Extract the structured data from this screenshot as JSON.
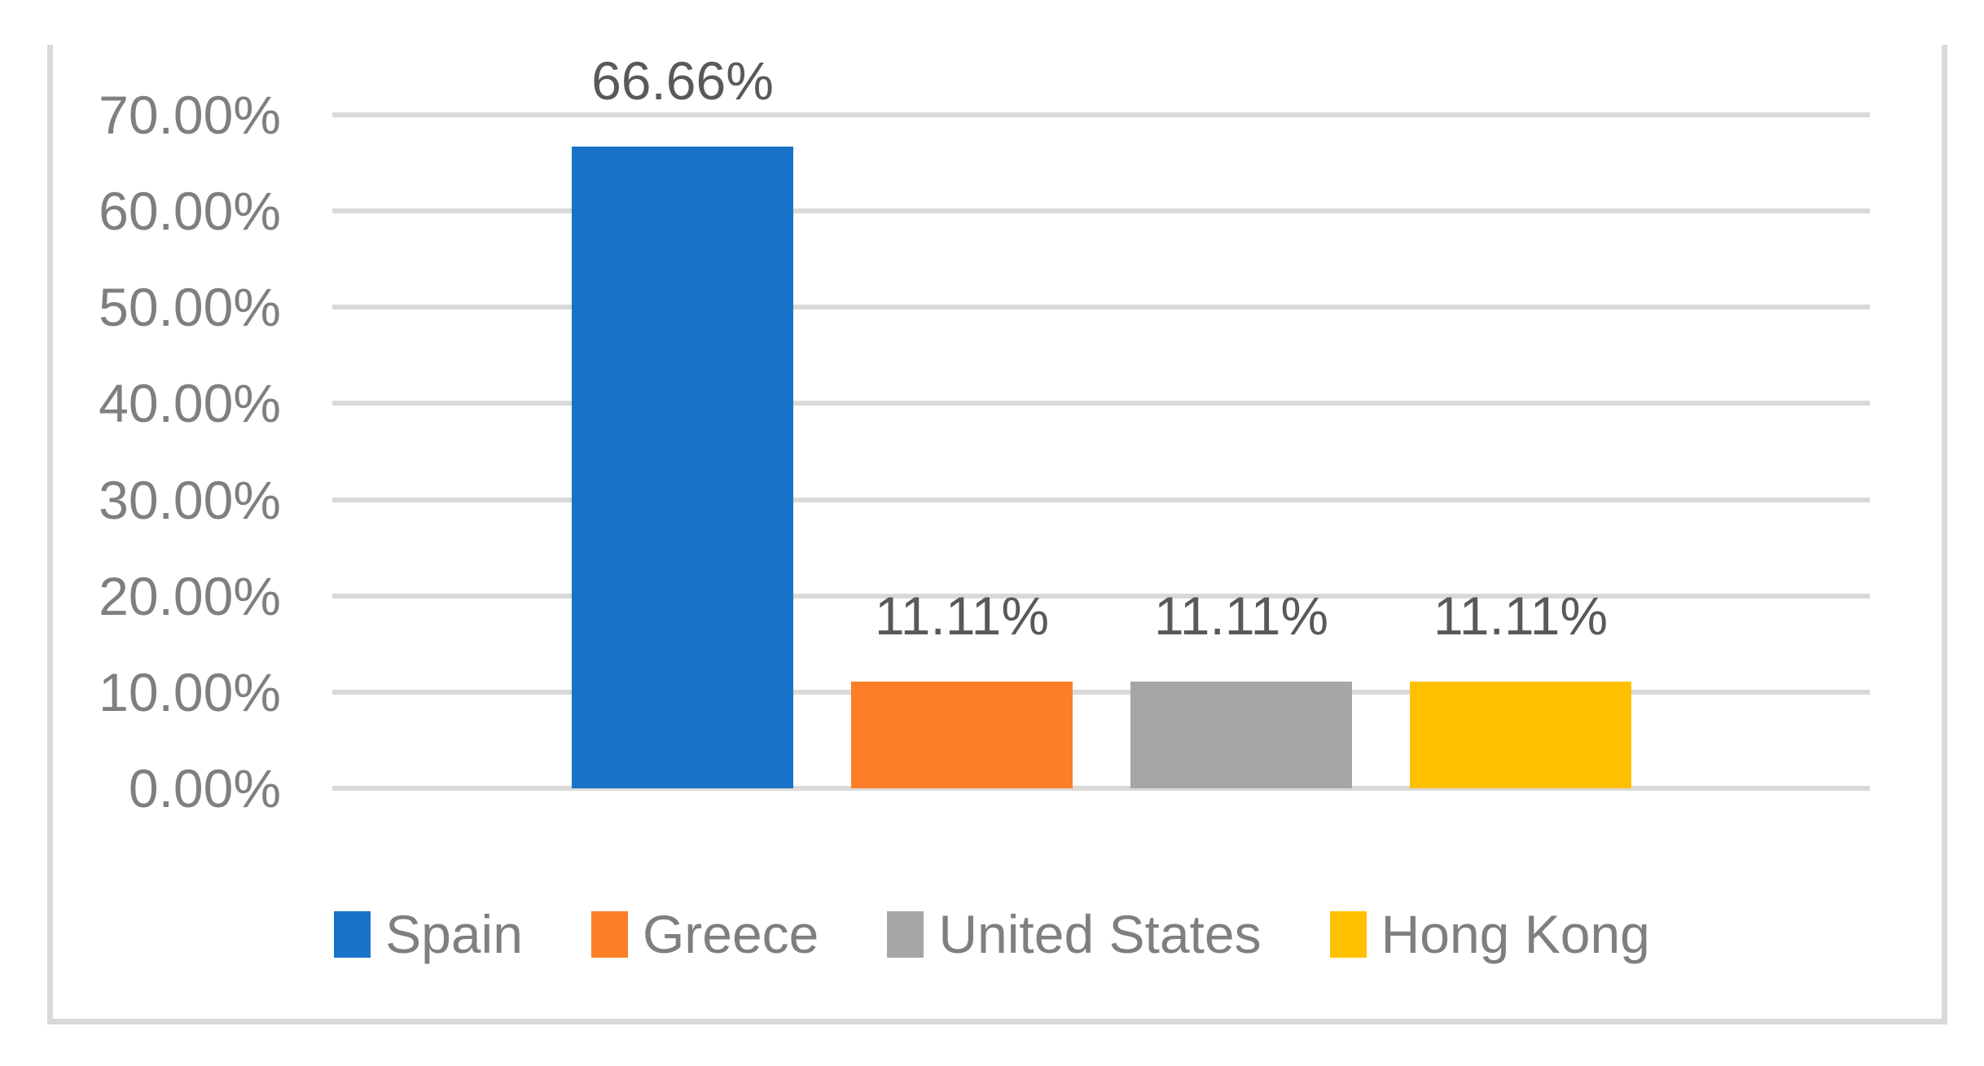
{
  "chart_data": {
    "type": "bar",
    "title": "",
    "xlabel": "",
    "ylabel": "",
    "categories": [
      "Spain",
      "Greece",
      "United States",
      "Hong Kong"
    ],
    "values": [
      66.66,
      11.11,
      11.11,
      11.11
    ],
    "data_labels": [
      "66.66%",
      "11.11%",
      "11.11%",
      "11.11%"
    ],
    "series_colors": [
      "#1873C8",
      "#FC7E27",
      "#A6A6A6",
      "#FFC000"
    ],
    "ylim": [
      0,
      70
    ],
    "y_ticks": [
      {
        "value": 70,
        "label": "70.00%"
      },
      {
        "value": 60,
        "label": "60.00%"
      },
      {
        "value": 50,
        "label": "50.00%"
      },
      {
        "value": 40,
        "label": "40.00%"
      },
      {
        "value": 30,
        "label": "30.00%"
      },
      {
        "value": 20,
        "label": "20.00%"
      },
      {
        "value": 10,
        "label": "10.00%"
      },
      {
        "value": 0,
        "label": "0.00%"
      }
    ],
    "grid": true,
    "legend_position": "bottom"
  },
  "colors": {
    "background": "#FFFFFF",
    "frame_border": "#D9D9D9",
    "gridline": "#D9D9D9",
    "axis_text": "#7F7F7F",
    "data_label_text": "#595959",
    "legend_text": "#7F7F7F"
  }
}
